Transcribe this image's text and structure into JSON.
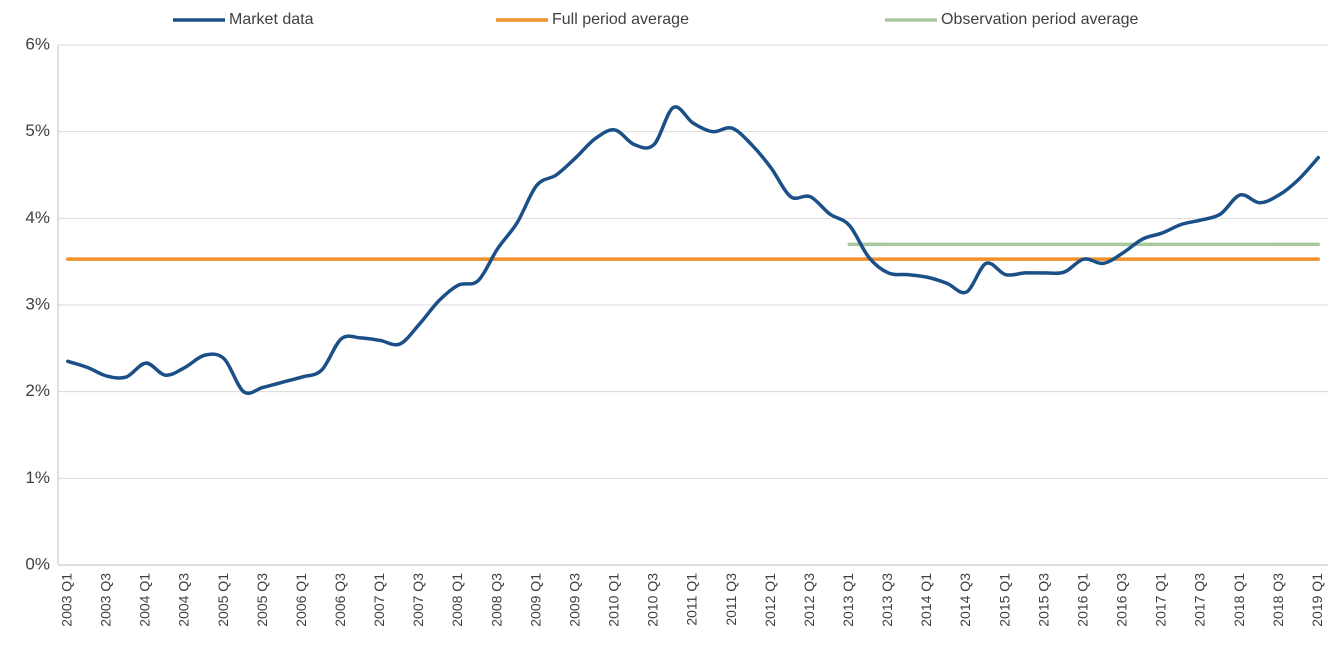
{
  "chart_data": {
    "type": "line",
    "categories": [
      "2003 Q1",
      null,
      "2003 Q3",
      null,
      "2004 Q1",
      null,
      "2004 Q3",
      null,
      "2005 Q1",
      null,
      "2005 Q3",
      null,
      "2006 Q1",
      null,
      "2006 Q3",
      null,
      "2007 Q1",
      null,
      "2007 Q3",
      null,
      "2008 Q1",
      null,
      "2008 Q3",
      null,
      "2009 Q1",
      null,
      "2009 Q3",
      null,
      "2010 Q1",
      null,
      "2010 Q3",
      null,
      "2011 Q1",
      null,
      "2011 Q3",
      null,
      "2012 Q1",
      null,
      "2012 Q3",
      null,
      "2013 Q1",
      null,
      "2013 Q3",
      null,
      "2014 Q1",
      null,
      "2014 Q3",
      null,
      "2015 Q1",
      null,
      "2015 Q3",
      null,
      "2016 Q1",
      null,
      "2016 Q3",
      null,
      "2017 Q1",
      null,
      "2017 Q3",
      null,
      "2018 Q1",
      null,
      "2018 Q3",
      null,
      "2019 Q1"
    ],
    "series": [
      {
        "name": "Market data",
        "color": "#1b4f87",
        "values": [
          2.35,
          2.28,
          2.18,
          2.17,
          2.33,
          2.19,
          2.28,
          2.42,
          2.38,
          2.0,
          2.05,
          2.11,
          2.17,
          2.25,
          2.61,
          2.62,
          2.59,
          2.55,
          2.78,
          3.05,
          3.23,
          3.28,
          3.65,
          3.95,
          4.38,
          4.5,
          4.7,
          4.92,
          5.02,
          4.85,
          4.85,
          5.28,
          5.1,
          5.0,
          5.04,
          4.85,
          4.58,
          4.25,
          4.25,
          4.05,
          3.92,
          3.55,
          3.37,
          3.35,
          3.32,
          3.25,
          3.15,
          3.48,
          3.35,
          3.37,
          3.37,
          3.38,
          3.53,
          3.48,
          3.6,
          3.76,
          3.83,
          3.93,
          3.98,
          4.05,
          4.27,
          4.18,
          4.27,
          4.45,
          4.7
        ]
      },
      {
        "name": "Full period average",
        "color": "#f0922b",
        "values": [
          3.53,
          3.53,
          3.53,
          3.53,
          3.53,
          3.53,
          3.53,
          3.53,
          3.53,
          3.53,
          3.53,
          3.53,
          3.53,
          3.53,
          3.53,
          3.53,
          3.53,
          3.53,
          3.53,
          3.53,
          3.53,
          3.53,
          3.53,
          3.53,
          3.53,
          3.53,
          3.53,
          3.53,
          3.53,
          3.53,
          3.53,
          3.53,
          3.53,
          3.53,
          3.53,
          3.53,
          3.53,
          3.53,
          3.53,
          3.53,
          3.53,
          3.53,
          3.53,
          3.53,
          3.53,
          3.53,
          3.53,
          3.53,
          3.53,
          3.53,
          3.53,
          3.53,
          3.53,
          3.53,
          3.53,
          3.53,
          3.53,
          3.53,
          3.53,
          3.53,
          3.53,
          3.53,
          3.53,
          3.53,
          3.53
        ]
      },
      {
        "name": "Observation period average",
        "color": "#a9c89b",
        "values": [
          null,
          null,
          null,
          null,
          null,
          null,
          null,
          null,
          null,
          null,
          null,
          null,
          null,
          null,
          null,
          null,
          null,
          null,
          null,
          null,
          null,
          null,
          null,
          null,
          null,
          null,
          null,
          null,
          null,
          null,
          null,
          null,
          null,
          null,
          null,
          null,
          null,
          null,
          null,
          null,
          3.7,
          3.7,
          3.7,
          3.7,
          3.7,
          3.7,
          3.7,
          3.7,
          3.7,
          3.7,
          3.7,
          3.7,
          3.7,
          3.7,
          3.7,
          3.7,
          3.7,
          3.7,
          3.7,
          3.7,
          3.7,
          3.7,
          3.7,
          3.7,
          3.7
        ]
      }
    ],
    "ylim": [
      0,
      6
    ],
    "yticks": [
      {
        "value": 0,
        "label": "0%"
      },
      {
        "value": 1,
        "label": "1%"
      },
      {
        "value": 2,
        "label": "2%"
      },
      {
        "value": 3,
        "label": "3%"
      },
      {
        "value": 4,
        "label": "4%"
      },
      {
        "value": 5,
        "label": "5%"
      },
      {
        "value": 6,
        "label": "6%"
      }
    ],
    "grid": true,
    "legend": "top"
  }
}
